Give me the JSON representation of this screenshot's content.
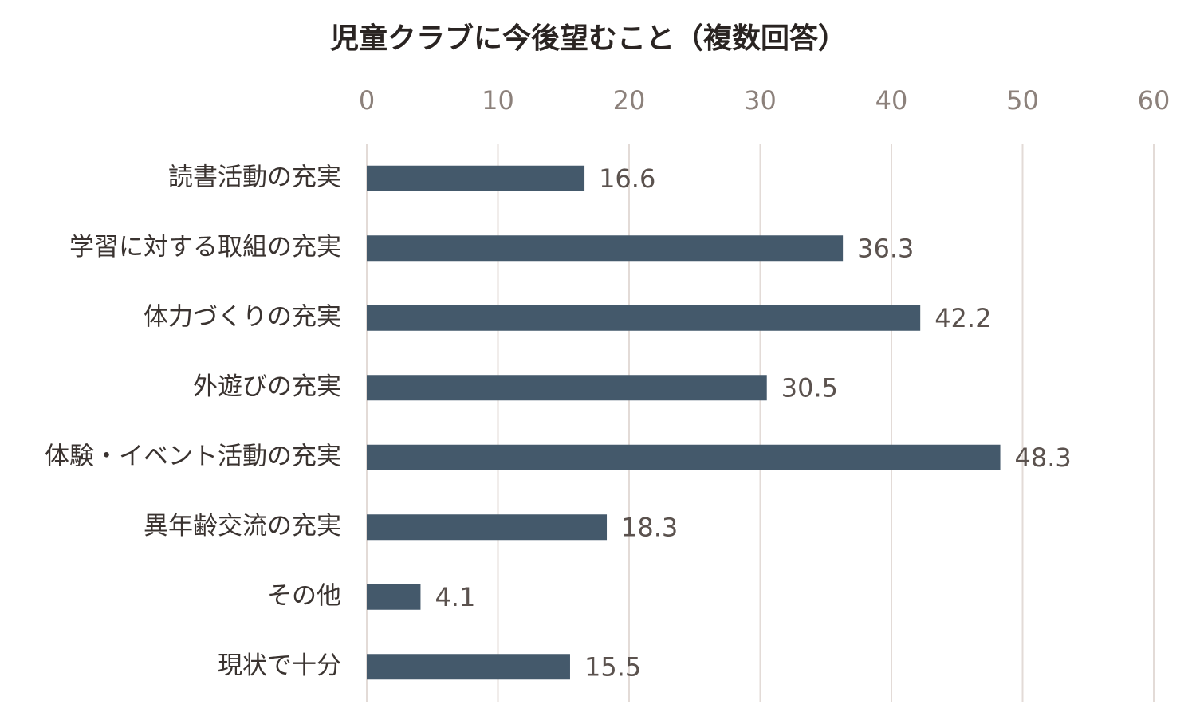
{
  "chart_data": {
    "type": "barh",
    "title": "児童クラブに今後望むこと（複数回答）",
    "categories": [
      "読書活動の充実",
      "学習に対する取組の充実",
      "体力づくりの充実",
      "外遊びの充実",
      "体験・イベント活動の充実",
      "異年齢交流の充実",
      "その他",
      "現状で十分"
    ],
    "values": [
      16.6,
      36.3,
      42.2,
      30.5,
      48.3,
      18.3,
      4.1,
      15.5
    ],
    "color": "#44596b",
    "xlim": [
      0,
      60
    ],
    "xticks": [
      0,
      10,
      20,
      30,
      40,
      50,
      60
    ],
    "grid": true
  }
}
